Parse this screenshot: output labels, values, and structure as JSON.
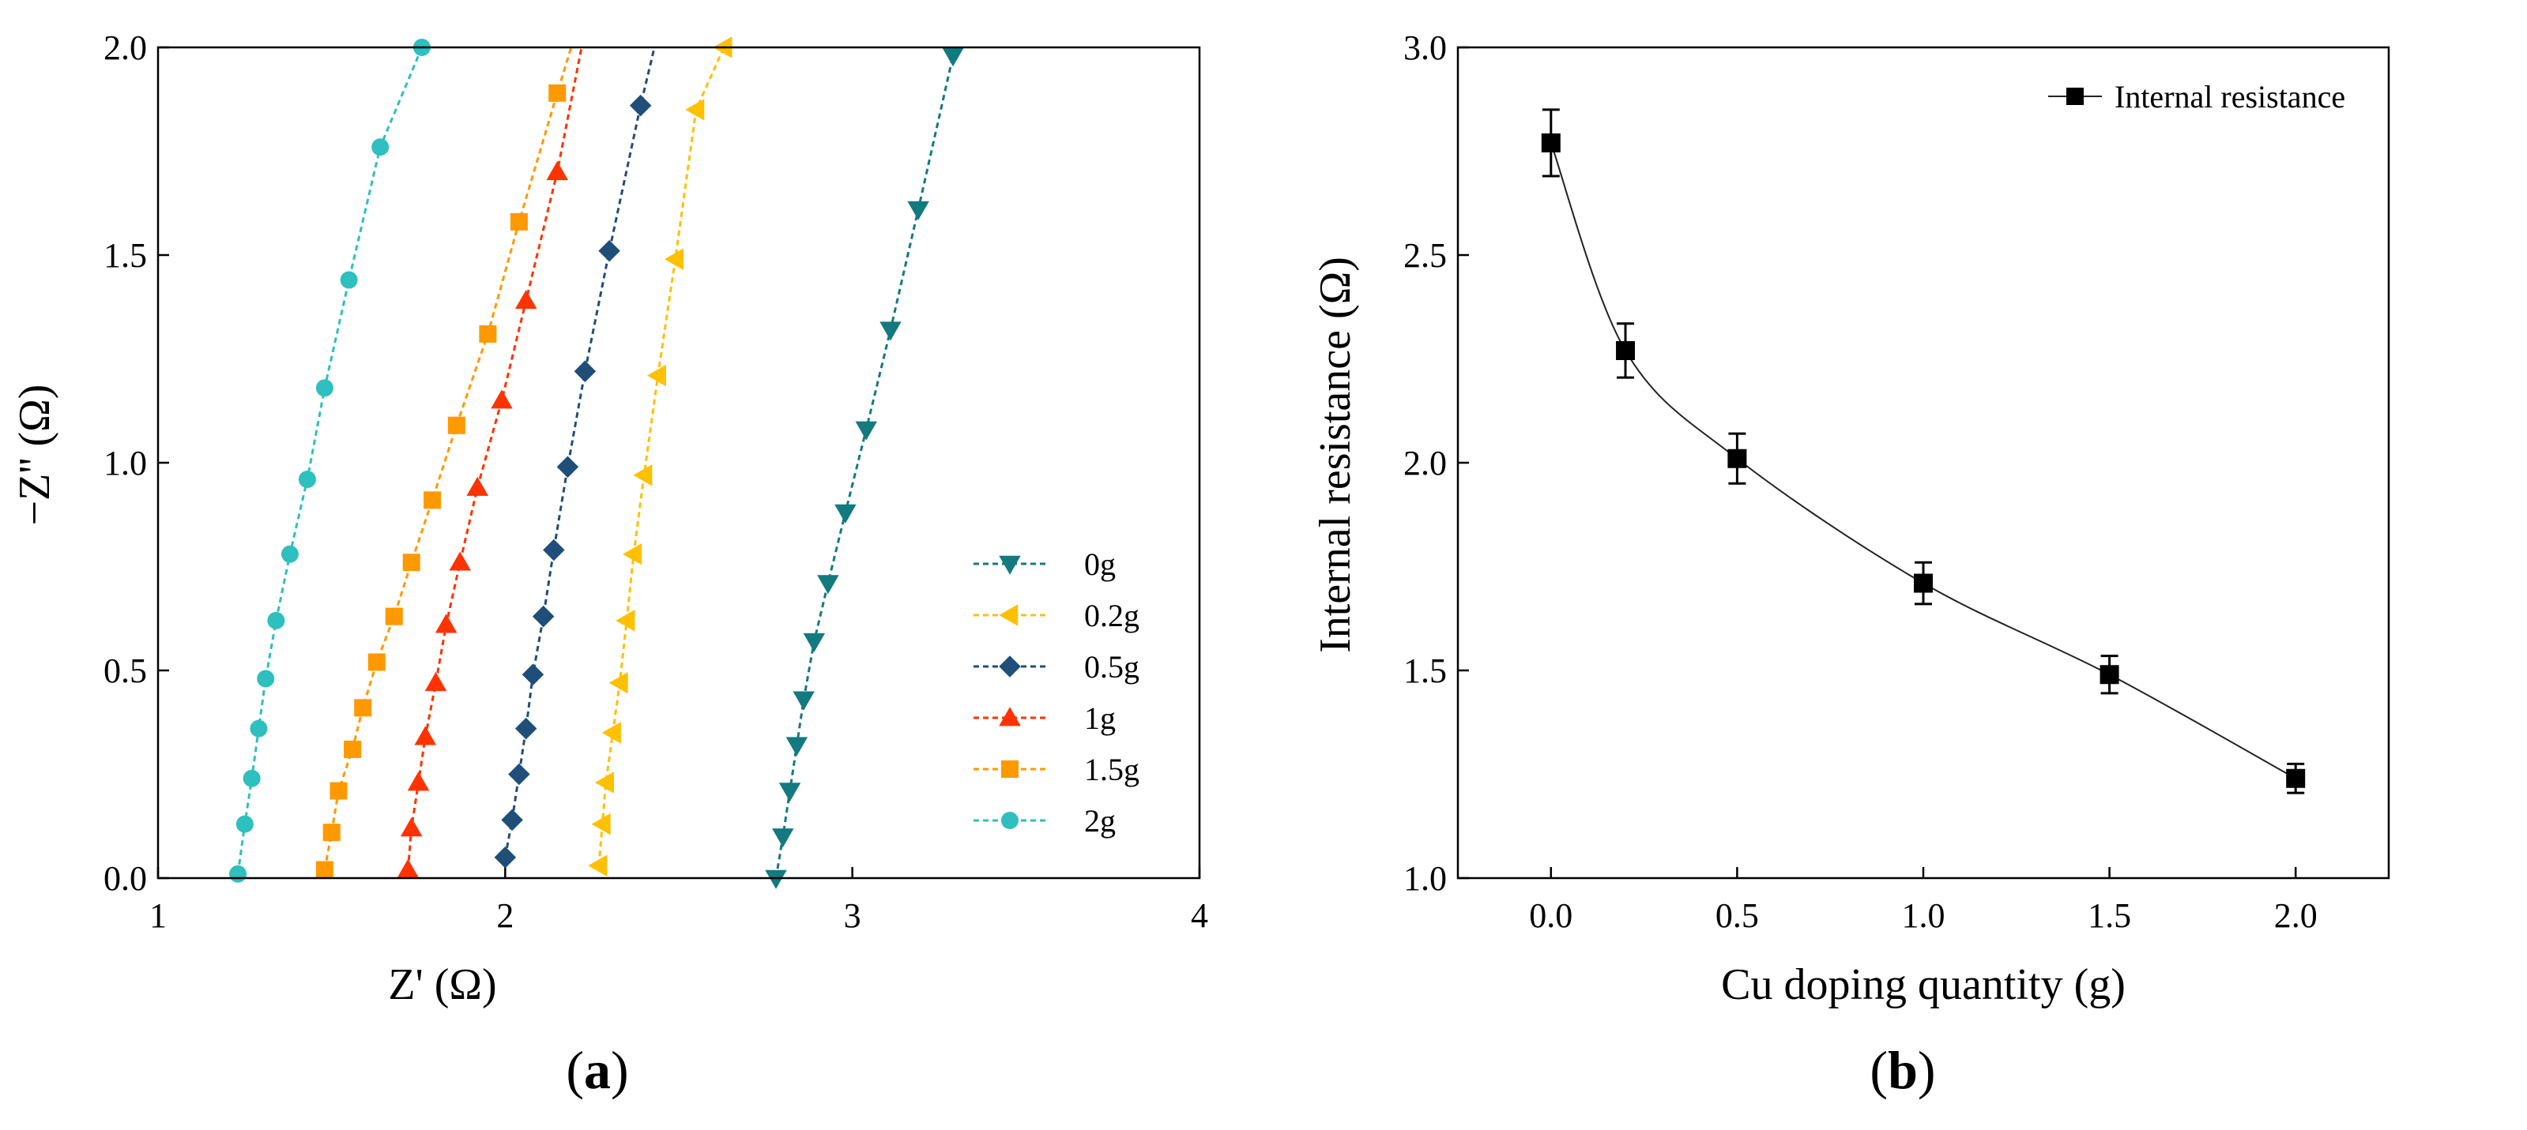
{
  "chart_data": [
    {
      "id": "a",
      "type": "scatter",
      "panel_label_open": "(",
      "panel_label_letter": "a",
      "panel_label_close": ")",
      "xlabel": "Z' (Ω)",
      "ylabel": "−Z'' (Ω)",
      "xlim": [
        1,
        4
      ],
      "ylim": [
        0,
        2
      ],
      "xticks": [
        1,
        2,
        3,
        4
      ],
      "xtick_labels": [
        "1",
        "2",
        "3",
        "4"
      ],
      "yticks": [
        0,
        0.5,
        1.0,
        1.5,
        2.0
      ],
      "ytick_labels": [
        "0.0",
        "0.5",
        "1.0",
        "1.5",
        "2.0"
      ],
      "legend_position": "lower-right",
      "line_style": "dashed",
      "series": [
        {
          "name": "0g",
          "marker": "triangle-down",
          "color": "#137a7f",
          "x": [
            2.78,
            2.8,
            2.82,
            2.84,
            2.86,
            2.89,
            2.93,
            2.98,
            3.04,
            3.11,
            3.19,
            3.29
          ],
          "y": [
            0.0,
            0.1,
            0.21,
            0.32,
            0.43,
            0.57,
            0.71,
            0.88,
            1.08,
            1.32,
            1.61,
            1.98
          ],
          "line_to": [
            3.31,
            2.0
          ]
        },
        {
          "name": "0.2g",
          "marker": "triangle-left",
          "color": "#ffc000",
          "x": [
            2.27,
            2.28,
            2.29,
            2.31,
            2.33,
            2.35,
            2.37,
            2.4,
            2.44,
            2.49,
            2.55,
            2.63
          ],
          "y": [
            0.03,
            0.13,
            0.23,
            0.35,
            0.47,
            0.62,
            0.78,
            0.97,
            1.21,
            1.49,
            1.85,
            2.0
          ],
          "line_to": [
            2.67,
            2.0
          ]
        },
        {
          "name": "0.5g",
          "marker": "diamond",
          "color": "#1f4e79",
          "x": [
            2.0,
            2.02,
            2.04,
            2.06,
            2.08,
            2.11,
            2.14,
            2.18,
            2.23,
            2.3,
            2.39
          ],
          "y": [
            0.05,
            0.14,
            0.25,
            0.36,
            0.49,
            0.63,
            0.79,
            0.99,
            1.22,
            1.51,
            1.86
          ],
          "line_to": [
            2.43,
            2.0
          ]
        },
        {
          "name": "1g",
          "marker": "triangle-up",
          "color": "#ff3300",
          "x": [
            1.72,
            1.73,
            1.75,
            1.77,
            1.8,
            1.83,
            1.87,
            1.92,
            1.99,
            2.06,
            2.15
          ],
          "y": [
            0.02,
            0.12,
            0.23,
            0.34,
            0.47,
            0.61,
            0.76,
            0.94,
            1.15,
            1.39,
            1.7
          ],
          "line_to": [
            2.22,
            2.0
          ]
        },
        {
          "name": "1.5g",
          "marker": "square",
          "color": "#ff9900",
          "x": [
            1.48,
            1.5,
            1.52,
            1.56,
            1.59,
            1.63,
            1.68,
            1.73,
            1.79,
            1.86,
            1.95,
            2.04,
            2.15
          ],
          "y": [
            0.02,
            0.11,
            0.21,
            0.31,
            0.41,
            0.52,
            0.63,
            0.76,
            0.91,
            1.09,
            1.31,
            1.58,
            1.89
          ],
          "line_to": [
            2.19,
            2.0
          ]
        },
        {
          "name": "2g",
          "marker": "circle",
          "color": "#2ebfbf",
          "x": [
            1.23,
            1.25,
            1.27,
            1.29,
            1.31,
            1.34,
            1.38,
            1.43,
            1.48,
            1.55,
            1.64,
            1.76
          ],
          "y": [
            0.01,
            0.13,
            0.24,
            0.36,
            0.48,
            0.62,
            0.78,
            0.96,
            1.18,
            1.44,
            1.76,
            2.0
          ],
          "line_to": [
            1.77,
            2.0
          ]
        }
      ]
    },
    {
      "id": "b",
      "type": "line",
      "panel_label_open": "(",
      "panel_label_letter": "b",
      "panel_label_close": ")",
      "xlabel": "Cu doping quantity (g)",
      "ylabel": "Internal resistance (Ω)",
      "xlim": [
        -0.25,
        2.25
      ],
      "ylim": [
        1.0,
        3.0
      ],
      "xticks": [
        0.0,
        0.5,
        1.0,
        1.5,
        2.0
      ],
      "xtick_labels": [
        "0.0",
        "0.5",
        "1.0",
        "1.5",
        "2.0"
      ],
      "yticks": [
        1.0,
        1.5,
        2.0,
        2.5,
        3.0
      ],
      "ytick_labels": [
        "1.0",
        "1.5",
        "2.0",
        "2.5",
        "3.0"
      ],
      "legend_position": "top-right",
      "series": [
        {
          "name": "Internal resistance",
          "marker": "square",
          "color": "#000000",
          "x": [
            0.0,
            0.2,
            0.5,
            1.0,
            1.5,
            2.0
          ],
          "y": [
            2.77,
            2.27,
            2.01,
            1.71,
            1.49,
            1.24
          ],
          "error": [
            0.08,
            0.065,
            0.06,
            0.05,
            0.045,
            0.035
          ]
        }
      ]
    }
  ]
}
